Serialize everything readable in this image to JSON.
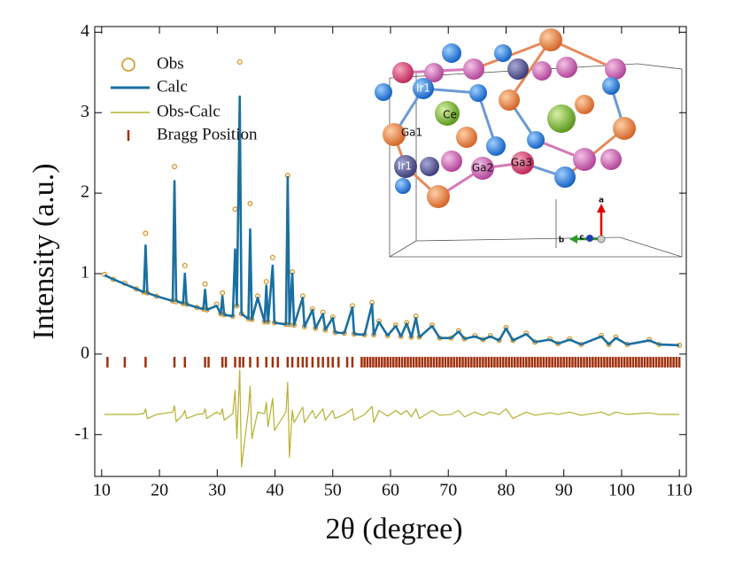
{
  "chart_data": {
    "type": "line",
    "xlabel": "2θ (degree)",
    "ylabel": "Intensity (a.u.)",
    "xlim": [
      8.8,
      111.2
    ],
    "ylim": [
      -1.52,
      4.07
    ],
    "xticks": [
      10,
      20,
      30,
      40,
      50,
      60,
      70,
      80,
      90,
      100,
      110
    ],
    "yticks": [
      -1,
      0,
      1,
      2,
      3,
      4
    ],
    "legend": "upper left",
    "x": [
      10.5,
      12,
      14,
      16,
      17.3,
      17.6,
      17.9,
      19.5,
      22.3,
      22.6,
      22.9,
      24.1,
      24.4,
      24.7,
      26.5,
      27.6,
      27.9,
      28.2,
      29.9,
      30.6,
      30.9,
      31.2,
      32.7,
      33.1,
      33.4,
      33.9,
      34.2,
      35.4,
      35.7,
      36.0,
      37.0,
      38.2,
      38.5,
      38.8,
      39.6,
      39.9,
      41.9,
      42.2,
      42.5,
      43.0,
      43.3,
      44.8,
      45.1,
      46.5,
      47.0,
      48.3,
      48.7,
      50.0,
      50.4,
      52.0,
      53.4,
      53.7,
      55.5,
      56.8,
      57.1,
      58.0,
      59.5,
      60.9,
      61.8,
      62.8,
      63.6,
      64.4,
      65.0,
      67.2,
      68.5,
      70.5,
      71.8,
      72.8,
      74.6,
      76.0,
      77.3,
      78.8,
      80.0,
      81.2,
      83.5,
      85.0,
      87.6,
      89.0,
      91.0,
      93.0,
      96.5,
      97.8,
      99.0,
      101.0,
      104.8,
      106.5,
      110.0
    ],
    "series": [
      {
        "name": "Obs",
        "color": "#d4901a",
        "style": "circle",
        "values": [
          0.99,
          0.93,
          0.88,
          0.81,
          0.77,
          1.5,
          0.76,
          0.72,
          0.66,
          2.33,
          0.65,
          0.63,
          1.1,
          0.62,
          0.58,
          0.56,
          0.87,
          0.55,
          0.62,
          0.5,
          0.76,
          0.49,
          0.47,
          1.8,
          0.6,
          3.63,
          0.5,
          0.44,
          1.87,
          0.43,
          0.72,
          0.4,
          0.9,
          0.4,
          1.2,
          0.39,
          0.37,
          2.22,
          0.37,
          1.02,
          0.36,
          0.72,
          0.34,
          0.56,
          0.32,
          0.52,
          0.3,
          0.46,
          0.27,
          0.26,
          0.6,
          0.25,
          0.24,
          0.64,
          0.24,
          0.41,
          0.23,
          0.36,
          0.22,
          0.39,
          0.21,
          0.47,
          0.21,
          0.36,
          0.2,
          0.2,
          0.29,
          0.19,
          0.23,
          0.18,
          0.23,
          0.17,
          0.33,
          0.17,
          0.26,
          0.15,
          0.19,
          0.13,
          0.19,
          0.12,
          0.23,
          0.12,
          0.21,
          0.12,
          0.18,
          0.12,
          0.11
        ]
      },
      {
        "name": "Calc",
        "color": "#1a6fa0",
        "style": "line",
        "values": [
          0.98,
          0.93,
          0.87,
          0.81,
          0.77,
          1.35,
          0.76,
          0.72,
          0.66,
          2.15,
          0.66,
          0.63,
          1.0,
          0.62,
          0.58,
          0.56,
          0.8,
          0.55,
          0.6,
          0.5,
          0.72,
          0.49,
          0.47,
          1.3,
          0.6,
          3.2,
          0.5,
          0.44,
          1.55,
          0.43,
          0.7,
          0.4,
          0.85,
          0.4,
          1.1,
          0.39,
          0.37,
          2.2,
          0.37,
          1.0,
          0.36,
          0.7,
          0.34,
          0.55,
          0.32,
          0.5,
          0.3,
          0.45,
          0.27,
          0.26,
          0.58,
          0.25,
          0.24,
          0.62,
          0.24,
          0.4,
          0.23,
          0.35,
          0.22,
          0.38,
          0.21,
          0.45,
          0.21,
          0.35,
          0.2,
          0.2,
          0.28,
          0.19,
          0.22,
          0.18,
          0.22,
          0.17,
          0.32,
          0.17,
          0.25,
          0.15,
          0.18,
          0.13,
          0.18,
          0.12,
          0.22,
          0.12,
          0.2,
          0.12,
          0.17,
          0.12,
          0.11
        ]
      },
      {
        "name": "Obs-Calc",
        "color": "#b5b030",
        "style": "line",
        "values": [
          -0.75,
          -0.75,
          -0.75,
          -0.75,
          -0.74,
          -0.68,
          -0.8,
          -0.75,
          -0.72,
          -0.64,
          -0.84,
          -0.75,
          -0.7,
          -0.8,
          -0.75,
          -0.74,
          -0.68,
          -0.8,
          -0.72,
          -0.75,
          -0.68,
          -0.82,
          -0.74,
          -0.45,
          -1.05,
          -0.2,
          -1.4,
          -0.7,
          -0.4,
          -1.05,
          -0.72,
          -0.74,
          -0.6,
          -0.9,
          -0.55,
          -0.95,
          -0.72,
          -0.35,
          -1.28,
          -0.7,
          -0.85,
          -0.66,
          -0.85,
          -0.7,
          -0.8,
          -0.68,
          -0.82,
          -0.7,
          -0.8,
          -0.75,
          -0.68,
          -0.82,
          -0.75,
          -0.65,
          -0.85,
          -0.7,
          -0.77,
          -0.7,
          -0.75,
          -0.7,
          -0.78,
          -0.68,
          -0.8,
          -0.7,
          -0.76,
          -0.75,
          -0.7,
          -0.78,
          -0.72,
          -0.76,
          -0.72,
          -0.75,
          -0.68,
          -0.8,
          -0.72,
          -0.76,
          -0.73,
          -0.75,
          -0.72,
          -0.76,
          -0.72,
          -0.76,
          -0.72,
          -0.75,
          -0.73,
          -0.75,
          -0.75
        ]
      },
      {
        "name": "Bragg Position",
        "color": "#a0300c",
        "style": "tick",
        "x": [
          11,
          14,
          17.6,
          22.6,
          24.4,
          27.9,
          28.5,
          30.9,
          31.5,
          33.1,
          33.9,
          34.5,
          35.7,
          37.0,
          38.5,
          39.6,
          40.5,
          42.2,
          43.0,
          44.0,
          44.8,
          45.5,
          46.5,
          47.5,
          48.3,
          49.2,
          50.0,
          51.0,
          52.5,
          53.4,
          55,
          55.5,
          56,
          56.5,
          57,
          57.5,
          58,
          58.5,
          59,
          59.5,
          60,
          60.5,
          61,
          61.5,
          62,
          62.5,
          63,
          63.5,
          64,
          64.5,
          65,
          65.5,
          66,
          66.5,
          67,
          67.5,
          68,
          68.5,
          69,
          69.5,
          70,
          70.5,
          71,
          71.5,
          72,
          72.5,
          73,
          73.5,
          74,
          74.5,
          75,
          75.5,
          76,
          76.5,
          77,
          77.5,
          78,
          78.5,
          79,
          79.5,
          80,
          80.5,
          81,
          81.5,
          82,
          82.5,
          83,
          83.5,
          84,
          84.5,
          85,
          85.5,
          86,
          86.5,
          87,
          87.5,
          88,
          88.5,
          89,
          89.5,
          90,
          90.5,
          91,
          91.5,
          92,
          92.5,
          93,
          93.5,
          94,
          94.5,
          95,
          95.5,
          96,
          96.5,
          97,
          97.5,
          98,
          98.5,
          99,
          99.5,
          100,
          100.5,
          101,
          101.5,
          102,
          102.5,
          103,
          103.5,
          104,
          104.5,
          105,
          105.5,
          106,
          106.5,
          107,
          107.5,
          108,
          108.5,
          109,
          109.5,
          110
        ],
        "values": [
          -0.1,
          -0.1,
          -0.1,
          -0.1,
          -0.1,
          -0.1,
          -0.1,
          -0.1,
          -0.1,
          -0.1,
          -0.1,
          -0.1,
          -0.1,
          -0.1,
          -0.1,
          -0.1,
          -0.1,
          -0.1,
          -0.1,
          -0.1,
          -0.1,
          -0.1,
          -0.1,
          -0.1,
          -0.1,
          -0.1,
          -0.1,
          -0.1,
          -0.1,
          -0.1,
          -0.1,
          -0.1,
          -0.1,
          -0.1,
          -0.1,
          -0.1,
          -0.1,
          -0.1,
          -0.1,
          -0.1,
          -0.1,
          -0.1,
          -0.1,
          -0.1,
          -0.1,
          -0.1,
          -0.1,
          -0.1,
          -0.1,
          -0.1,
          -0.1,
          -0.1,
          -0.1,
          -0.1,
          -0.1,
          -0.1,
          -0.1,
          -0.1,
          -0.1,
          -0.1,
          -0.1,
          -0.1,
          -0.1,
          -0.1,
          -0.1,
          -0.1,
          -0.1,
          -0.1,
          -0.1,
          -0.1,
          -0.1,
          -0.1,
          -0.1,
          -0.1,
          -0.1,
          -0.1,
          -0.1,
          -0.1,
          -0.1,
          -0.1,
          -0.1,
          -0.1,
          -0.1,
          -0.1,
          -0.1,
          -0.1,
          -0.1,
          -0.1,
          -0.1,
          -0.1,
          -0.1,
          -0.1,
          -0.1,
          -0.1,
          -0.1,
          -0.1,
          -0.1,
          -0.1,
          -0.1,
          -0.1,
          -0.1,
          -0.1,
          -0.1,
          -0.1,
          -0.1,
          -0.1,
          -0.1,
          -0.1,
          -0.1,
          -0.1,
          -0.1,
          -0.1,
          -0.1,
          -0.1,
          -0.1,
          -0.1,
          -0.1,
          -0.1,
          -0.1,
          -0.1,
          -0.1,
          -0.1,
          -0.1,
          -0.1,
          -0.1,
          -0.1,
          -0.1,
          -0.1,
          -0.1,
          -0.1,
          -0.1,
          -0.1,
          -0.1,
          -0.1,
          -0.1,
          -0.1,
          -0.1,
          -0.1,
          -0.1,
          -0.1,
          -0.1
        ]
      }
    ],
    "inset_labels": [
      "Ir1",
      "Ce",
      "Ga1",
      "Ir1",
      "Ga2",
      "Ga3",
      "a",
      "b",
      "c"
    ]
  }
}
